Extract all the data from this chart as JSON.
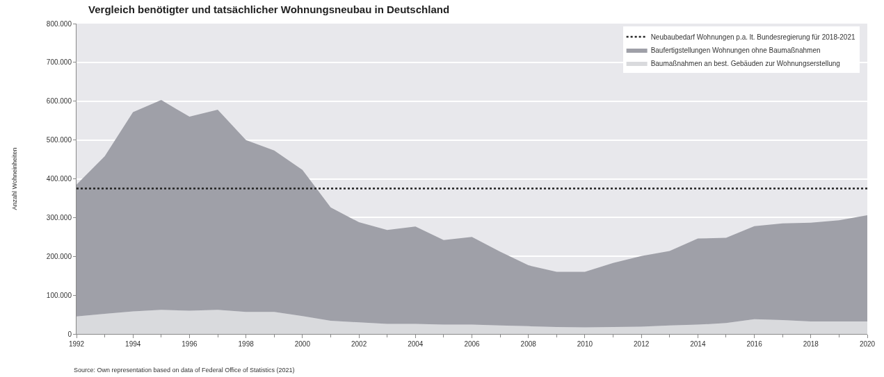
{
  "chart_data": {
    "type": "area",
    "title": "Vergleich benötigter und tatsächlicher Wohnungsneubau in Deutschland",
    "ylabel": "Anzahl Wohneinheiten",
    "stacked": true,
    "x": [
      1992,
      1993,
      1994,
      1995,
      1996,
      1997,
      1998,
      1999,
      2000,
      2001,
      2002,
      2003,
      2004,
      2005,
      2006,
      2007,
      2008,
      2009,
      2010,
      2011,
      2012,
      2013,
      2014,
      2015,
      2016,
      2017,
      2018,
      2019,
      2020
    ],
    "series": [
      {
        "name": "Baumaßnahmen an best. Gebäuden zur Wohnungserstellung",
        "color": "#d9dadd",
        "values": [
          45000,
          52000,
          58000,
          62000,
          60000,
          62000,
          57000,
          57000,
          46000,
          34000,
          30000,
          26000,
          26000,
          24000,
          24000,
          22000,
          20000,
          18000,
          17000,
          18000,
          19000,
          22000,
          24000,
          28000,
          38000,
          36000,
          32000,
          32000,
          32000
        ]
      },
      {
        "name": "Baufertigstellungen Wohnungen ohne Baumaßnahmen",
        "color": "#9fa0a8",
        "values": [
          340000,
          406000,
          514000,
          541000,
          500000,
          516000,
          443000,
          416000,
          377000,
          292000,
          258000,
          242000,
          251000,
          218000,
          226000,
          190000,
          157000,
          142000,
          143000,
          165000,
          182000,
          192000,
          222000,
          220000,
          240000,
          249000,
          255000,
          261000,
          274000
        ]
      }
    ],
    "ref_lines": [
      {
        "axis": "y",
        "value": 375000,
        "label": "Neubaubedarf Wohnungen p.a. lt. Bundesregierung für 2018-2021",
        "color": "#222222",
        "line_style": "dotted"
      }
    ],
    "xlim": [
      1992,
      2020
    ],
    "xticks": [
      1992,
      1994,
      1996,
      1998,
      2000,
      2002,
      2004,
      2006,
      2008,
      2010,
      2012,
      2014,
      2016,
      2018,
      2020
    ],
    "ylim": [
      0,
      800000
    ],
    "yticks": [
      {
        "value": 0,
        "label": "0"
      },
      {
        "value": 100000,
        "label": "100.000"
      },
      {
        "value": 200000,
        "label": "200.000"
      },
      {
        "value": 300000,
        "label": "300.000"
      },
      {
        "value": 400000,
        "label": "400.000"
      },
      {
        "value": 500000,
        "label": "500.000"
      },
      {
        "value": 600000,
        "label": "600.000"
      },
      {
        "value": 700000,
        "label": "700.000"
      },
      {
        "value": 800000,
        "label": "800.000"
      }
    ],
    "grid": "y",
    "legend": "top right",
    "annotations": [
      "Source: Own representation based on data of Federal Office of Statistics (2021)"
    ]
  }
}
